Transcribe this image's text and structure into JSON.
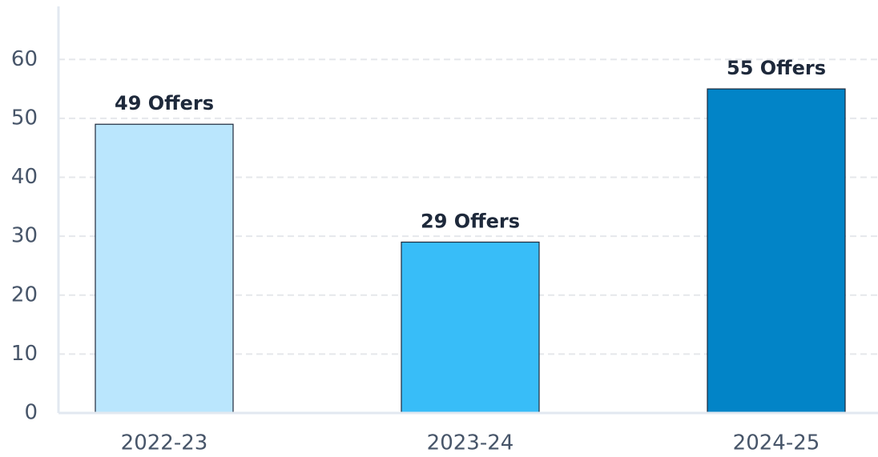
{
  "chart_data": {
    "type": "bar",
    "categories": [
      "2022-23",
      "2023-24",
      "2024-25"
    ],
    "values": [
      49,
      29,
      55
    ],
    "value_labels": [
      "49 Offers",
      "29 Offers",
      "55 Offers"
    ],
    "colors": [
      "#bae6fd",
      "#38bdf8",
      "#0284c7"
    ],
    "ylim": [
      0,
      69
    ],
    "yticks": [
      0,
      10,
      20,
      30,
      40,
      50,
      60
    ],
    "grid": true
  }
}
